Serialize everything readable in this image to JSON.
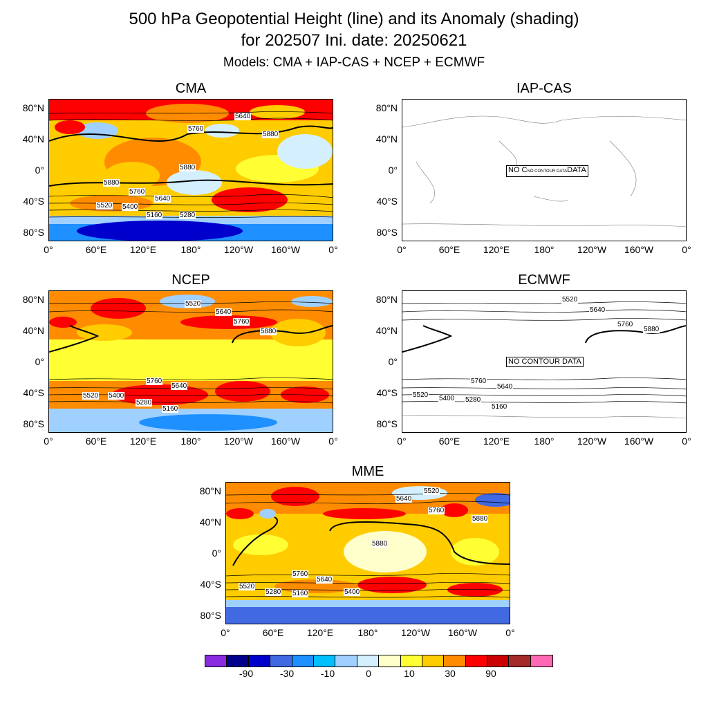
{
  "title": {
    "line1": "500 hPa Geopotential Height (line) and its Anomaly (shading)",
    "line2": "for 202507 Ini. date: 20250621",
    "line3": "Models: CMA + IAP-CAS + NCEP + ECMWF"
  },
  "axes": {
    "y_ticks": [
      "80°N",
      "40°N",
      "0°",
      "40°S",
      "80°S"
    ],
    "x_ticks": [
      "0°",
      "60°E",
      "120°E",
      "180°",
      "120°W",
      "160°W",
      "0°"
    ]
  },
  "panels": [
    {
      "id": "cma",
      "title": "CMA",
      "shaded": true,
      "contour_labels": [
        "5640",
        "5760",
        "5880",
        "5880",
        "5880",
        "5760",
        "5640",
        "5520",
        "5400",
        "5160",
        "5280"
      ]
    },
    {
      "id": "iap",
      "title": "IAP-CAS",
      "shaded": false,
      "no_data_label": "NO C",
      "no_data_label_mid": "NO CONTOUR DATA",
      "no_data_label_end": "DATA",
      "contour_labels": []
    },
    {
      "id": "ncep",
      "title": "NCEP",
      "shaded": true,
      "contour_labels": [
        "5520",
        "5640",
        "5760",
        "5880",
        "5760",
        "5640",
        "5520",
        "5400",
        "5280",
        "5160"
      ]
    },
    {
      "id": "ecmwf",
      "title": "ECMWF",
      "shaded": false,
      "no_data_label": "NO CONTOUR DATA",
      "contour_labels": [
        "5520",
        "5640",
        "5760",
        "5880",
        "5760",
        "5640",
        "5520",
        "5400",
        "5280",
        "5160"
      ]
    },
    {
      "id": "mme",
      "title": "MME",
      "shaded": true,
      "contour_labels": [
        "5520",
        "5640",
        "5760",
        "5880",
        "5880",
        "5760",
        "5640",
        "5520",
        "5280",
        "5160",
        "5400"
      ]
    }
  ],
  "colorbar": {
    "colors": [
      "#8a2be2",
      "#00008b",
      "#0000cd",
      "#4169e1",
      "#1e90ff",
      "#00bfff",
      "#a0d0ff",
      "#d4f0ff",
      "#ffffcc",
      "#ffff33",
      "#ffcc00",
      "#ff8c00",
      "#ff0000",
      "#cc0000",
      "#a52a2a",
      "#ff69b4"
    ],
    "labels": [
      "-90",
      "-30",
      "-10",
      "0",
      "10",
      "30",
      "90"
    ]
  }
}
